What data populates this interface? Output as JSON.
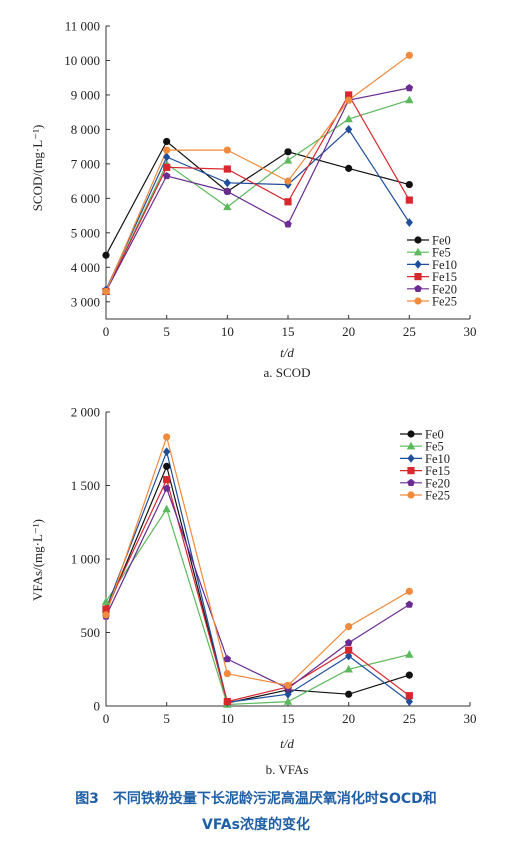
{
  "chart_data": [
    {
      "type": "line",
      "subtitle": "a. SCOD",
      "xlabel": "t/d",
      "ylabel": "SCOD/(mg·L⁻¹)",
      "xlim": [
        0,
        30
      ],
      "ylim": [
        2500,
        11000
      ],
      "xticks": [
        0,
        5,
        10,
        15,
        20,
        25,
        30
      ],
      "xtick_labels": [
        "0",
        "5",
        "10",
        "15",
        "20",
        "25",
        "30"
      ],
      "yticks": [
        3000,
        4000,
        5000,
        6000,
        7000,
        8000,
        9000,
        10000,
        11000
      ],
      "ytick_labels": [
        "3 000",
        "4 000",
        "5 000",
        "6 000",
        "7 000",
        "8 000",
        "9 000",
        "10 000",
        "11 000"
      ],
      "grid": false,
      "legend_position": "bottom-right",
      "x": [
        0,
        5,
        10,
        15,
        20,
        25
      ],
      "series": [
        {
          "name": "Fe0",
          "color": "#111111",
          "marker": "circle",
          "values": [
            4350,
            7650,
            6200,
            7350,
            6870,
            6400
          ]
        },
        {
          "name": "Fe5",
          "color": "#5cb85c",
          "marker": "triangle",
          "values": [
            3300,
            7000,
            5750,
            7100,
            8300,
            8850
          ]
        },
        {
          "name": "Fe10",
          "color": "#1f4e9c",
          "marker": "diamond",
          "values": [
            3350,
            7200,
            6450,
            6400,
            8000,
            5300
          ]
        },
        {
          "name": "Fe15",
          "color": "#d9272e",
          "marker": "square",
          "values": [
            3300,
            6900,
            6850,
            5900,
            9000,
            5950
          ]
        },
        {
          "name": "Fe20",
          "color": "#6a2c91",
          "marker": "pentagon",
          "values": [
            3300,
            6650,
            6200,
            5250,
            8850,
            9200
          ]
        },
        {
          "name": "Fe25",
          "color": "#f08a3c",
          "marker": "circle",
          "values": [
            3300,
            7400,
            7400,
            6500,
            8850,
            10150
          ]
        }
      ]
    },
    {
      "type": "line",
      "subtitle": "b. VFAs",
      "xlabel": "t/d",
      "ylabel": "VFAs/(mg·L⁻¹)",
      "xlim": [
        0,
        30
      ],
      "ylim": [
        0,
        2000
      ],
      "xticks": [
        0,
        5,
        10,
        15,
        20,
        25,
        30
      ],
      "xtick_labels": [
        "0",
        "5",
        "10",
        "15",
        "20",
        "25",
        "30"
      ],
      "yticks": [
        0,
        500,
        1000,
        1500,
        2000
      ],
      "ytick_labels": [
        "0",
        "500",
        "1 000",
        "1 500",
        "2 000"
      ],
      "grid": false,
      "legend_position": "top-right",
      "x": [
        0,
        5,
        10,
        15,
        20,
        25
      ],
      "series": [
        {
          "name": "Fe0",
          "color": "#111111",
          "marker": "circle",
          "values": [
            640,
            1630,
            20,
            110,
            80,
            210
          ]
        },
        {
          "name": "Fe5",
          "color": "#5cb85c",
          "marker": "triangle",
          "values": [
            710,
            1340,
            10,
            30,
            250,
            350
          ]
        },
        {
          "name": "Fe10",
          "color": "#1f4e9c",
          "marker": "diamond",
          "values": [
            660,
            1730,
            25,
            80,
            340,
            30
          ]
        },
        {
          "name": "Fe15",
          "color": "#d9272e",
          "marker": "square",
          "values": [
            660,
            1540,
            30,
            130,
            380,
            70
          ]
        },
        {
          "name": "Fe20",
          "color": "#6a2c91",
          "marker": "pentagon",
          "values": [
            610,
            1480,
            320,
            120,
            430,
            690
          ]
        },
        {
          "name": "Fe25",
          "color": "#f08a3c",
          "marker": "circle",
          "values": [
            620,
            1830,
            220,
            140,
            540,
            780
          ]
        }
      ]
    }
  ],
  "caption": {
    "line1": "图3　不同铁粉投量下长泥龄污泥高温厌氧消化时SOCD和",
    "line2": "VFAs浓度的变化"
  }
}
